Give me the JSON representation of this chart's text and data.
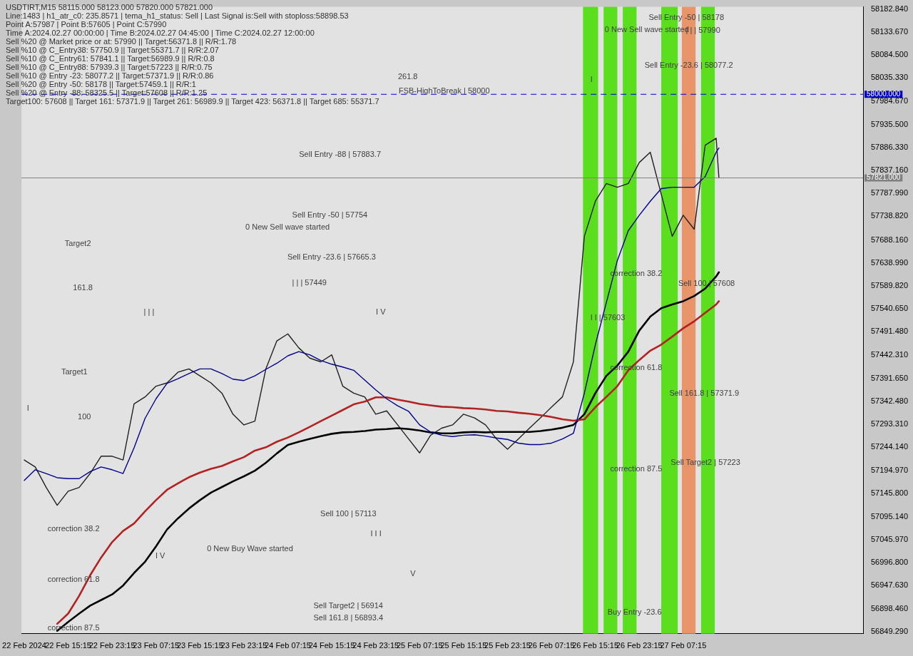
{
  "chart_data": {
    "type": "line",
    "marker": "none",
    "line_style": "solid",
    "grid": false,
    "legend": false,
    "x": [
      "2024-02-22T07:15",
      "2024-02-22T09:15",
      "2024-02-22T11:15",
      "2024-02-22T13:15",
      "2024-02-22T15:15",
      "2024-02-22T17:15",
      "2024-02-22T19:15",
      "2024-02-22T21:15",
      "2024-02-22T23:15",
      "2024-02-23T01:15",
      "2024-02-23T03:15",
      "2024-02-23T05:15",
      "2024-02-23T07:15",
      "2024-02-23T09:15",
      "2024-02-23T11:15",
      "2024-02-23T13:15",
      "2024-02-23T15:15",
      "2024-02-23T17:15",
      "2024-02-23T19:15",
      "2024-02-23T21:15",
      "2024-02-23T23:15",
      "2024-02-24T01:15",
      "2024-02-24T03:15",
      "2024-02-24T05:15",
      "2024-02-24T07:15",
      "2024-02-24T09:15",
      "2024-02-24T11:15",
      "2024-02-24T13:15",
      "2024-02-24T15:15",
      "2024-02-24T17:15",
      "2024-02-24T19:15",
      "2024-02-24T21:15",
      "2024-02-24T23:15",
      "2024-02-25T01:15",
      "2024-02-25T03:15",
      "2024-02-25T05:15",
      "2024-02-25T07:15",
      "2024-02-25T09:15",
      "2024-02-25T11:15",
      "2024-02-25T13:15",
      "2024-02-25T15:15",
      "2024-02-25T17:15",
      "2024-02-25T19:15",
      "2024-02-25T21:15",
      "2024-02-25T23:15",
      "2024-02-26T01:15",
      "2024-02-26T03:15",
      "2024-02-26T05:15",
      "2024-02-26T07:15",
      "2024-02-26T09:15",
      "2024-02-26T11:15",
      "2024-02-26T13:15",
      "2024-02-26T15:15",
      "2024-02-26T17:15",
      "2024-02-26T19:15",
      "2024-02-26T21:15",
      "2024-02-26T23:15",
      "2024-02-27T01:15",
      "2024-02-27T03:15",
      "2024-02-27T05:15",
      "2024-02-27T07:15",
      "2024-02-27T09:15",
      "2024-02-27T11:15",
      "2024-02-27T13:15",
      "2024-02-27T13:45"
    ],
    "series": [
      {
        "color": "#00008b",
        "values": [
          57173,
          57196,
          57188,
          57179,
          57177,
          57177,
          57192,
          57202,
          57196,
          57188,
          57243,
          57306,
          57348,
          57381,
          57391,
          57402,
          57412,
          57412,
          57402,
          57390,
          57387,
          57397,
          57411,
          57424,
          57440,
          57449,
          57442,
          57430,
          57422,
          57416,
          57409,
          57388,
          57367,
          57348,
          57333,
          57321,
          57292,
          57277,
          57270,
          57267,
          57270,
          57271,
          57268,
          57264,
          57261,
          57253,
          57250,
          57250,
          57253,
          57262,
          57274,
          57360,
          57464,
          57554,
          57644,
          57708,
          57741,
          57771,
          57798,
          57801,
          57801,
          57801,
          57824,
          57876,
          57885
        ]
      },
      {
        "color": "#b22222",
        "values": [
          null,
          null,
          null,
          56866,
          56888,
          56926,
          56970,
          57008,
          57041,
          57065,
          57081,
          57107,
          57131,
          57153,
          57167,
          57180,
          57190,
          57198,
          57204,
          57214,
          57223,
          57237,
          57244,
          57256,
          57265,
          57276,
          57288,
          57300,
          57312,
          57324,
          57336,
          57342,
          57351,
          57351,
          57346,
          57342,
          57337,
          57334,
          57331,
          57330,
          57328,
          57327,
          57325,
          57322,
          57321,
          57318,
          57316,
          57313,
          57309,
          57304,
          57301,
          57304,
          57330,
          57352,
          57375,
          57409,
          57431,
          57451,
          57464,
          57481,
          57499,
          57514,
          57532,
          57550,
          57557
        ]
      },
      {
        "color": "#000000",
        "values": [
          null,
          null,
          null,
          56851,
          56870,
          56888,
          56905,
          56917,
          56929,
          56948,
          56975,
          56999,
          57032,
          57068,
          57092,
          57113,
          57131,
          57147,
          57159,
          57171,
          57182,
          57194,
          57211,
          57231,
          57249,
          57256,
          57262,
          57268,
          57273,
          57276,
          57277,
          57279,
          57282,
          57283,
          57285,
          57283,
          57280,
          57276,
          57274,
          57274,
          57276,
          57277,
          57276,
          57277,
          57277,
          57277,
          57277,
          57279,
          57282,
          57286,
          57292,
          57315,
          57360,
          57397,
          57419,
          57449,
          57494,
          57524,
          57542,
          57550,
          57557,
          57568,
          57584,
          57610,
          57619
        ]
      },
      {
        "color": "#202020",
        "values": [
          57217,
          57202,
          57158,
          57120,
          57150,
          57158,
          57188,
          57225,
          57225,
          57217,
          57337,
          57352,
          57375,
          57382,
          57405,
          57412,
          57397,
          57382,
          57360,
          57315,
          57292,
          57300,
          57412,
          57472,
          57487,
          57457,
          57435,
          57427,
          57442,
          57375,
          57360,
          57352,
          57315,
          57322,
          57292,
          57262,
          57232,
          57270,
          57285,
          57292,
          57315,
          57307,
          57292,
          57262,
          57240,
          57262,
          57285,
          57307,
          57330,
          57352,
          57427,
          57696,
          57771,
          57809,
          57801,
          57809,
          57854,
          57876,
          57786,
          57696,
          57741,
          57711,
          57891,
          57906,
          57821
        ]
      }
    ],
    "xlim": [
      "2024-02-22T06:45",
      "2024-02-28T16:00"
    ],
    "xticks": [
      {
        "value": "2024-02-22T07:15",
        "label": "22 Feb 2024"
      },
      {
        "value": "2024-02-22T15:15",
        "label": "22 Feb 15:15"
      },
      {
        "value": "2024-02-22T23:15",
        "label": "22 Feb 23:15"
      },
      {
        "value": "2024-02-23T07:15",
        "label": "23 Feb 07:15"
      },
      {
        "value": "2024-02-23T15:15",
        "label": "23 Feb 15:15"
      },
      {
        "value": "2024-02-23T23:15",
        "label": "23 Feb 23:15"
      },
      {
        "value": "2024-02-24T07:15",
        "label": "24 Feb 07:15"
      },
      {
        "value": "2024-02-24T15:15",
        "label": "24 Feb 15:15"
      },
      {
        "value": "2024-02-24T23:15",
        "label": "24 Feb 23:15"
      },
      {
        "value": "2024-02-25T07:15",
        "label": "25 Feb 07:15"
      },
      {
        "value": "2024-02-25T15:15",
        "label": "25 Feb 15:15"
      },
      {
        "value": "2024-02-25T23:15",
        "label": "25 Feb 23:15"
      },
      {
        "value": "2024-02-26T07:15",
        "label": "26 Feb 07:15"
      },
      {
        "value": "2024-02-26T15:15",
        "label": "26 Feb 15:15"
      },
      {
        "value": "2024-02-26T23:15",
        "label": "26 Feb 23:15"
      },
      {
        "value": "2024-02-27T07:15",
        "label": "27 Feb 07:15"
      }
    ],
    "ylim": [
      56844.8,
      58187.3
    ],
    "yticks": [
      {
        "value": 58182.84,
        "label": "58182.840"
      },
      {
        "value": 58133.67,
        "label": "58133.670"
      },
      {
        "value": 58084.5,
        "label": "58084.500"
      },
      {
        "value": 58035.33,
        "label": "58035.330"
      },
      {
        "value": 57984.67,
        "label": "57984.670"
      },
      {
        "value": 57935.5,
        "label": "57935.500"
      },
      {
        "value": 57886.33,
        "label": "57886.330"
      },
      {
        "value": 57837.16,
        "label": "57837.160"
      },
      {
        "value": 57787.99,
        "label": "57787.990"
      },
      {
        "value": 57738.82,
        "label": "57738.820"
      },
      {
        "value": 57688.16,
        "label": "57688.160"
      },
      {
        "value": 57638.99,
        "label": "57638.990"
      },
      {
        "value": 57589.82,
        "label": "57589.820"
      },
      {
        "value": 57540.65,
        "label": "57540.650"
      },
      {
        "value": 57491.48,
        "label": "57491.480"
      },
      {
        "value": 57442.31,
        "label": "57442.310"
      },
      {
        "value": 57391.65,
        "label": "57391.650"
      },
      {
        "value": 57342.48,
        "label": "57342.480"
      },
      {
        "value": 57293.31,
        "label": "57293.310"
      },
      {
        "value": 57244.14,
        "label": "57244.140"
      },
      {
        "value": 57194.97,
        "label": "57194.970"
      },
      {
        "value": 57145.8,
        "label": "57145.800"
      },
      {
        "value": 57095.14,
        "label": "57095.140"
      },
      {
        "value": 57045.97,
        "label": "57045.970"
      },
      {
        "value": 56996.8,
        "label": "56996.800"
      },
      {
        "value": 56947.63,
        "label": "56947.630"
      },
      {
        "value": 56898.46,
        "label": "56898.460"
      },
      {
        "value": 56849.29,
        "label": "56849.290"
      }
    ],
    "ref_lines": [
      {
        "axis": "y",
        "value": 58000,
        "label": "58000.000",
        "color": "#0000cd",
        "line_style": "dashed"
      },
      {
        "axis": "y",
        "value": 57821,
        "label": "57821.000",
        "color": "#808080",
        "line_style": "solid"
      }
    ],
    "bands": [
      {
        "axis": "x",
        "from": "2024-02-26T13:00",
        "to": "2024-02-26T15:45",
        "color": "#5ade1e"
      },
      {
        "axis": "x",
        "from": "2024-02-26T16:45",
        "to": "2024-02-26T19:15",
        "color": "#5ade1e"
      },
      {
        "axis": "x",
        "from": "2024-02-26T20:15",
        "to": "2024-02-26T22:45",
        "color": "#5ade1e"
      },
      {
        "axis": "x",
        "from": "2024-02-27T03:15",
        "to": "2024-02-27T06:15",
        "color": "#5ade1e"
      },
      {
        "axis": "x",
        "from": "2024-02-27T07:00",
        "to": "2024-02-27T09:30",
        "color": "#e8956a"
      },
      {
        "axis": "x",
        "from": "2024-02-27T10:30",
        "to": "2024-02-27T13:00",
        "color": "#5ade1e"
      }
    ],
    "annotations": [
      "261.8",
      "FSB-HighToBreak | 58000",
      "Sell Entry -50 | 58178",
      "0 New Sell wave started",
      "| | | 57990",
      "Sell Entry -23.6 | 58077.2",
      "Sell Entry -88 | 57883.7",
      "Sell Entry -50 | 57754",
      "0 New Sell wave started",
      "Sell Entry -23.6 | 57665.3",
      "| | | 57449",
      "| | |",
      "I V",
      "Target2",
      "161.8",
      "Target1",
      "100",
      "I",
      "correction 38.2",
      "correction 61.8",
      "correction 87.5",
      "I V",
      "0 New Buy Wave started",
      "Sell 100 | 57113",
      "I I I",
      "V",
      "Sell Target2 | 56914",
      "Sell 161.8 | 56893.4",
      "I",
      "correction 38.2",
      "I I | 57603",
      "Sell 100 | 57608",
      "correction 61.8",
      "Sell 161.8 | 57371.9",
      "correction 87.5",
      "Sell Target2 | 57223",
      "Buy Entry -23.6",
      "USDTIRT,M15  58115.000 58123.000 57820.000 57821.000",
      "Line:1483 | h1_atr_c0: 235.8571 | tema_h1_status: Sell | Last Signal is:Sell with stoploss:58898.53",
      "Point A:57987 | Point B:57605 | Point C:57990",
      "Time A:2024.02.27 00:00:00 | Time B:2024.02.27 04:45:00 | Time C:2024.02.27 12:00:00",
      "Sell %20 @ Market price or at: 57990 || Target:56371.8 || R/R:1.78",
      "Sell %10 @ C_Entry38: 57750.9 || Target:55371.7 || R/R:2.07",
      "Sell %10 @ C_Entry61: 57841.1 || Target:56989.9 || R/R:0.8",
      "Sell %10 @ C_Entry88: 57939.3 || Target:57223 || R/R:0.75",
      "Sell %10 @ Entry -23: 58077.2 || Target:57371.9 || R/R:0.86",
      "Sell %20 @ Entry -50: 58178 || Target:57459.1 || R/R:1",
      "Sell %20 @ Entry -88: 58325.5 || Target:57608 || R/R:1.25",
      "Target100: 57608 || Target 161: 57371.9 || Target 261: 56989.9 || Target 423: 56371.8 || Target 685: 55371.7"
    ]
  }
}
